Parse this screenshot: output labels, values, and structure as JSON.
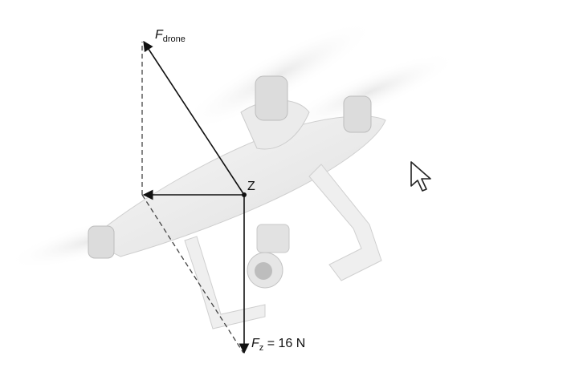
{
  "labels": {
    "f_drone": {
      "symbol": "F",
      "subscript": "drone"
    },
    "point": "Z",
    "f_z": {
      "symbol": "F",
      "subscript": "z",
      "value_text": "= 16 N"
    }
  },
  "icons": {
    "cursor": "mouse-pointer-icon"
  },
  "colors": {
    "vector": "#111111",
    "drone_body": "#f2f2f2",
    "drone_shadow": "#d9d9d9"
  }
}
